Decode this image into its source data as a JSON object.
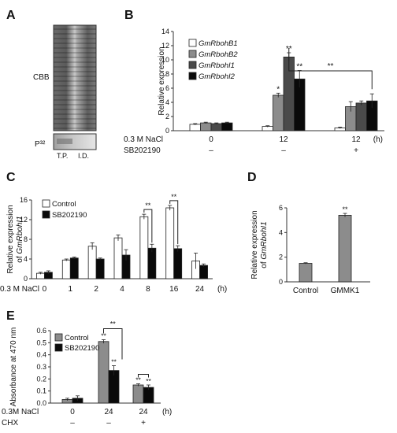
{
  "panel_labels": {
    "A": "A",
    "B": "B",
    "C": "C",
    "D": "D",
    "E": "E"
  },
  "colors": {
    "white_bar": "#ffffff",
    "light_gray": "#c8c8c8",
    "mid_gray": "#8c8c8c",
    "dark_gray": "#4a4a4a",
    "black": "#0a0a0a"
  },
  "panel_a": {
    "cbb_label": "CBB",
    "p32_label": "P³²",
    "lane_labels": [
      "T.P.",
      "I.D."
    ]
  },
  "chart_data": [
    {
      "panel": "B",
      "type": "bar",
      "ylabel": "Relative expression",
      "ylim": [
        0,
        14
      ],
      "yticks": [
        0,
        2,
        4,
        6,
        8,
        10,
        12,
        14
      ],
      "x_unit": "(h)",
      "row_labels": [
        "0.3 M NaCl",
        "SB202190"
      ],
      "categories": [
        {
          "nacl": "0",
          "inhib": "–"
        },
        {
          "nacl": "12",
          "inhib": "–"
        },
        {
          "nacl": "12",
          "inhib": "+"
        }
      ],
      "series": [
        {
          "name": "GmRbohB1",
          "values": [
            0.9,
            0.6,
            0.4
          ],
          "errors": [
            0.1,
            0.1,
            0.1
          ],
          "color": "#ffffff"
        },
        {
          "name": "GmRbohB2",
          "values": [
            1.1,
            5.0,
            3.4
          ],
          "errors": [
            0.1,
            0.3,
            0.7
          ],
          "color": "#8c8c8c"
        },
        {
          "name": "GmRbohI1",
          "values": [
            1.0,
            10.4,
            3.9
          ],
          "errors": [
            0.1,
            0.6,
            0.3
          ],
          "color": "#4a4a4a"
        },
        {
          "name": "GmRbohI2",
          "values": [
            1.1,
            7.3,
            4.2
          ],
          "errors": [
            0.1,
            1.2,
            1.0
          ],
          "color": "#0a0a0a"
        }
      ],
      "annotations": [
        {
          "text": "*",
          "group": 1,
          "series": 1
        },
        {
          "text": "**",
          "group": 1,
          "series": 2
        },
        {
          "text": "**",
          "group": 1,
          "series": 3
        },
        {
          "text": "**",
          "type": "bracket"
        }
      ]
    },
    {
      "panel": "C",
      "type": "bar",
      "ylabel": "Relative expression of GmRbohI1",
      "ylabel_parts": [
        "Relative expression",
        "of ",
        "GmRbohI1"
      ],
      "ylim": [
        0,
        16
      ],
      "yticks": [
        0,
        4,
        8,
        12,
        16
      ],
      "x_row_label": "0.3 M NaCl",
      "x_unit": "(h)",
      "categories": [
        "0",
        "1",
        "2",
        "4",
        "8",
        "16",
        "24"
      ],
      "series": [
        {
          "name": "Control",
          "values": [
            1.1,
            3.8,
            6.6,
            8.3,
            12.6,
            14.4,
            3.6
          ],
          "errors": [
            0.2,
            0.2,
            0.7,
            0.6,
            0.5,
            0.5,
            1.6
          ],
          "color": "#ffffff"
        },
        {
          "name": "SB202190",
          "values": [
            1.3,
            4.2,
            4.0,
            4.8,
            6.2,
            6.1,
            2.7
          ],
          "errors": [
            0.3,
            0.2,
            0.2,
            1.1,
            0.8,
            0.6,
            0.3
          ],
          "color": "#0a0a0a"
        }
      ],
      "annotations": [
        {
          "text": "**",
          "category": "8"
        },
        {
          "text": "**",
          "category": "16"
        }
      ]
    },
    {
      "panel": "D",
      "type": "bar",
      "ylabel": "Relative expression of GmRbohI1",
      "ylabel_parts": [
        "Relative expression",
        "of ",
        "GmRbohI1"
      ],
      "ylim": [
        0,
        6
      ],
      "yticks": [
        0,
        2,
        4,
        6
      ],
      "categories": [
        "Control",
        "GMMK1"
      ],
      "values": [
        1.5,
        5.4
      ],
      "errors": [
        0.05,
        0.15
      ],
      "color": "#8c8c8c",
      "annotations": [
        {
          "text": "**",
          "category": "GMMK1"
        }
      ]
    },
    {
      "panel": "E",
      "type": "bar",
      "ylabel": "Absorbance at 470 nm",
      "ylim": [
        0,
        0.6
      ],
      "yticks": [
        "0.0",
        "0.1",
        "0.2",
        "0.3",
        "0.4",
        "0.5",
        "0.6"
      ],
      "x_unit": "(h)",
      "row_labels": [
        "0.3M NaCl",
        "CHX"
      ],
      "categories": [
        {
          "nacl": "0",
          "chx": "–"
        },
        {
          "nacl": "24",
          "chx": "–"
        },
        {
          "nacl": "24",
          "chx": "+"
        }
      ],
      "series": [
        {
          "name": "Control",
          "values": [
            0.03,
            0.51,
            0.15
          ],
          "errors": [
            0.01,
            0.015,
            0.01
          ],
          "color": "#8c8c8c"
        },
        {
          "name": "SB202190",
          "values": [
            0.04,
            0.27,
            0.13
          ],
          "errors": [
            0.02,
            0.04,
            0.02
          ],
          "color": "#0a0a0a"
        }
      ],
      "annotations": [
        {
          "text": "**",
          "group": 1,
          "series": 0
        },
        {
          "text": "**",
          "group": 1,
          "series": 1
        },
        {
          "text": "**",
          "group": 2,
          "series": 0
        },
        {
          "text": "**",
          "group": 2,
          "series": 1
        },
        {
          "text": "**",
          "type": "bracket",
          "group": 1
        }
      ]
    }
  ]
}
